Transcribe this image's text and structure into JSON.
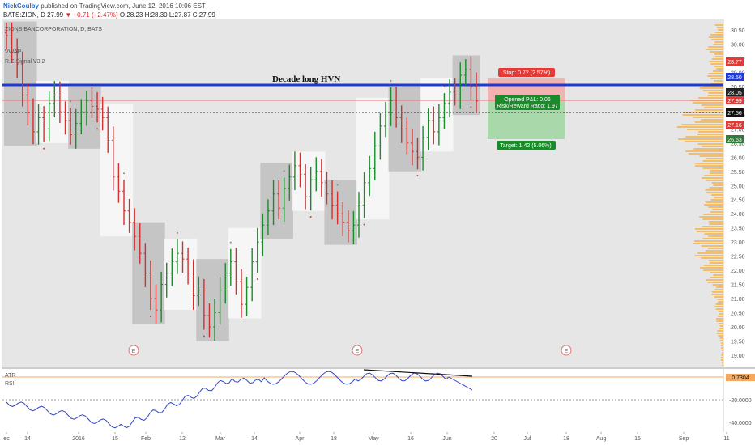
{
  "header": {
    "author": "NickCoulby",
    "published": "published on TradingView.com, June 12, 2016 10:06 EST",
    "symbol": "BATS:ZION, D",
    "price": "27.99",
    "change": "−0.71 (−2.47%)",
    "o": "O:28.23",
    "h": "H:28.30",
    "l": "L:27.87",
    "c": "C:27.99"
  },
  "chart_data": {
    "type": "candlestick",
    "title": "ZIONS BANCORPORATION, D, BATS",
    "legend_items": [
      "VWAP",
      "R.E.Signal V3.2"
    ],
    "y_axis_ticks": [
      "30.50",
      "30.00",
      "29.50",
      "29.00",
      "28.50",
      "28.00",
      "27.50",
      "27.00",
      "26.50",
      "26.00",
      "25.50",
      "25.00",
      "24.50",
      "24.00",
      "23.50",
      "23.00",
      "22.50",
      "22.00",
      "21.50",
      "21.00",
      "20.50",
      "20.00",
      "19.50",
      "19.00"
    ],
    "x_axis_ticks": [
      "ec",
      "14",
      "2016",
      "15",
      "Feb",
      "12",
      "Mar",
      "14",
      "Apr",
      "18",
      "May",
      "16",
      "Jun",
      "20",
      "Jul",
      "18",
      "Aug",
      "15",
      "Sep",
      "11"
    ],
    "price_tags": [
      {
        "label": "28.77",
        "color": "#e53935"
      },
      {
        "label": "28.50",
        "color": "#1e3ad6"
      },
      {
        "label": "28.05",
        "color": "#222222"
      },
      {
        "label": "27.99",
        "color": "#e53935"
      },
      {
        "label": "27.56",
        "color": "#111111"
      },
      {
        "label": "27.16",
        "color": "#e53935"
      },
      {
        "label": "26.63",
        "color": "#2e7d32"
      }
    ],
    "annotations": {
      "hvn_label": "Decade long HVN",
      "stop": "Stop: 0.72 (2.57%)",
      "opened_pl": "Opened P&L: 0.06",
      "risk_reward": "Risk/Reward Ratio: 1.97",
      "target": "Target: 1.42 (5.06%)",
      "earnings_marker": "E"
    },
    "closes": [
      30.3,
      29.7,
      29.3,
      28.2,
      27.6,
      26.9,
      27.4,
      27.0,
      27.9,
      28.2,
      27.6,
      27.3,
      26.8,
      27.2,
      27.6,
      28.0,
      27.8,
      27.7,
      27.4,
      26.6,
      25.3,
      24.8,
      24.1,
      23.7,
      23.2,
      22.6,
      21.9,
      21.0,
      20.6,
      21.5,
      21.9,
      22.3,
      22.6,
      22.4,
      21.9,
      21.1,
      21.3,
      20.4,
      20.0,
      20.5,
      21.3,
      21.9,
      22.3,
      21.6,
      20.8,
      21.4,
      22.3,
      23.0,
      23.6,
      24.1,
      24.7,
      24.2,
      24.9,
      25.3,
      25.7,
      25.4,
      24.6,
      25.2,
      25.5,
      25.1,
      24.7,
      24.3,
      24.0,
      23.7,
      23.4,
      23.6,
      24.3,
      25.1,
      25.6,
      26.4,
      27.1,
      27.6,
      28.0,
      27.4,
      27.0,
      26.5,
      26.2,
      26.0,
      26.7,
      27.3,
      26.9,
      27.4,
      27.9,
      28.3,
      28.2,
      28.9,
      29.1,
      28.5,
      27.99
    ],
    "rsi_label": "RSI",
    "atr_label": "ATR",
    "atr_value": "0.7304",
    "rsi_ticks": [
      "-20.0000",
      "-40.0000"
    ],
    "colors": {
      "up": "#1a8a2a",
      "down": "#d32f2f",
      "hvn": "#1e3ad6",
      "volume_profile": "#f4b860",
      "stop_zone": "#f4a8a8",
      "target_zone": "#9ed6a0",
      "rsi": "#3246c8"
    }
  }
}
